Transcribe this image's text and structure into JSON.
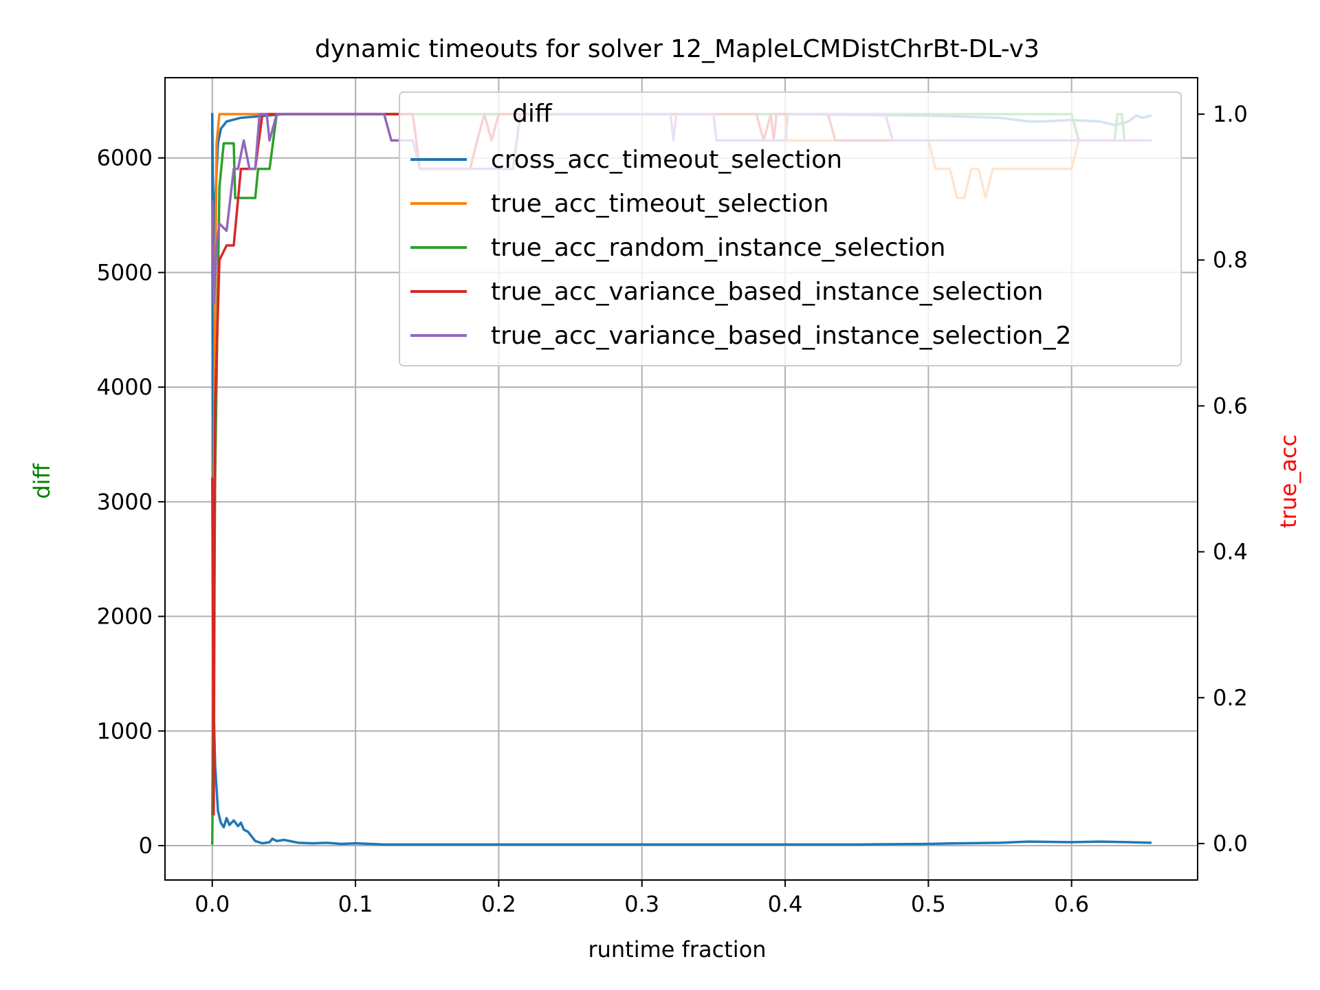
{
  "chart_data": {
    "type": "line",
    "title": "dynamic timeouts for solver 12_MapleLCMDistChrBt-DL-v3",
    "xlabel": "runtime fraction",
    "ylabel_left": "diff",
    "ylabel_right": "true_acc",
    "ylabel_left_color": "#008000",
    "ylabel_right_color": "#ff0000",
    "xlim": [
      -0.033,
      0.688
    ],
    "ylim_left": [
      -300,
      6700
    ],
    "ylim_right": [
      -0.05,
      1.05
    ],
    "grid": true,
    "legend_position": "top-right",
    "x_ticks": [
      {
        "v": 0.0,
        "label": "0.0"
      },
      {
        "v": 0.1,
        "label": "0.1"
      },
      {
        "v": 0.2,
        "label": "0.2"
      },
      {
        "v": 0.3,
        "label": "0.3"
      },
      {
        "v": 0.4,
        "label": "0.4"
      },
      {
        "v": 0.5,
        "label": "0.5"
      },
      {
        "v": 0.6,
        "label": "0.6"
      }
    ],
    "y_ticks_left": [
      {
        "v": 0,
        "label": "0"
      },
      {
        "v": 1000,
        "label": "1000"
      },
      {
        "v": 2000,
        "label": "2000"
      },
      {
        "v": 3000,
        "label": "3000"
      },
      {
        "v": 4000,
        "label": "4000"
      },
      {
        "v": 5000,
        "label": "5000"
      },
      {
        "v": 6000,
        "label": "6000"
      }
    ],
    "y_ticks_right": [
      {
        "v": 0.0,
        "label": "0.0"
      },
      {
        "v": 0.2,
        "label": "0.2"
      },
      {
        "v": 0.4,
        "label": "0.4"
      },
      {
        "v": 0.6,
        "label": "0.6"
      },
      {
        "v": 0.8,
        "label": "0.8"
      },
      {
        "v": 1.0,
        "label": "1.0"
      }
    ],
    "legend_title": "diff",
    "series": [
      {
        "name": "cross_acc_timeout_selection",
        "color": "#1f77b4",
        "axis": "left",
        "points": [
          [
            0,
            6380
          ],
          [
            0.0005,
            2000
          ],
          [
            0.001,
            1200
          ],
          [
            0.002,
            700
          ],
          [
            0.004,
            300
          ],
          [
            0.006,
            200
          ],
          [
            0.008,
            160
          ],
          [
            0.01,
            240
          ],
          [
            0.012,
            180
          ],
          [
            0.015,
            220
          ],
          [
            0.018,
            170
          ],
          [
            0.02,
            200
          ],
          [
            0.022,
            140
          ],
          [
            0.025,
            120
          ],
          [
            0.03,
            40
          ],
          [
            0.035,
            20
          ],
          [
            0.04,
            30
          ],
          [
            0.042,
            60
          ],
          [
            0.045,
            40
          ],
          [
            0.05,
            50
          ],
          [
            0.06,
            25
          ],
          [
            0.07,
            20
          ],
          [
            0.08,
            25
          ],
          [
            0.09,
            15
          ],
          [
            0.1,
            20
          ],
          [
            0.12,
            10
          ],
          [
            0.15,
            10
          ],
          [
            0.2,
            10
          ],
          [
            0.25,
            10
          ],
          [
            0.3,
            10
          ],
          [
            0.35,
            10
          ],
          [
            0.4,
            10
          ],
          [
            0.45,
            10
          ],
          [
            0.5,
            15
          ],
          [
            0.52,
            20
          ],
          [
            0.55,
            25
          ],
          [
            0.57,
            35
          ],
          [
            0.6,
            30
          ],
          [
            0.62,
            35
          ],
          [
            0.64,
            30
          ],
          [
            0.655,
            25
          ]
        ]
      },
      {
        "name": "cross_acc_timeout_selection",
        "color": "#1f77b4",
        "axis": "right",
        "points": [
          [
            0,
            1.0
          ],
          [
            0.0005,
            0.9
          ],
          [
            0.001,
            0.78
          ],
          [
            0.002,
            0.88
          ],
          [
            0.004,
            0.96
          ],
          [
            0.006,
            0.98
          ],
          [
            0.01,
            0.99
          ],
          [
            0.02,
            0.995
          ],
          [
            0.05,
            1.0
          ],
          [
            0.1,
            1.0
          ],
          [
            0.2,
            1.0
          ],
          [
            0.3,
            1.0
          ],
          [
            0.4,
            1.0
          ],
          [
            0.5,
            0.998
          ],
          [
            0.55,
            0.995
          ],
          [
            0.57,
            0.99
          ],
          [
            0.58,
            0.99
          ],
          [
            0.6,
            0.992
          ],
          [
            0.62,
            0.99
          ],
          [
            0.63,
            0.985
          ],
          [
            0.64,
            0.99
          ],
          [
            0.645,
            0.998
          ],
          [
            0.65,
            0.995
          ],
          [
            0.655,
            0.998
          ]
        ]
      },
      {
        "name": "true_acc_timeout_selection",
        "color": "#ff7f0e",
        "axis": "right",
        "points": [
          [
            0,
            0.04
          ],
          [
            0.001,
            0.5
          ],
          [
            0.003,
            0.96
          ],
          [
            0.005,
            1.0
          ],
          [
            0.4,
            1.0
          ],
          [
            0.401,
            0.964
          ],
          [
            0.5,
            0.964
          ],
          [
            0.5,
            0.964
          ],
          [
            0.505,
            0.925
          ],
          [
            0.515,
            0.925
          ],
          [
            0.52,
            0.885
          ],
          [
            0.525,
            0.885
          ],
          [
            0.53,
            0.925
          ],
          [
            0.535,
            0.925
          ],
          [
            0.54,
            0.885
          ],
          [
            0.545,
            0.925
          ],
          [
            0.6,
            0.925
          ],
          [
            0.605,
            0.964
          ],
          [
            0.655,
            0.964
          ]
        ]
      },
      {
        "name": "true_acc_random_instance_selection",
        "color": "#2ca02c",
        "axis": "right",
        "points": [
          [
            0,
            0.0
          ],
          [
            0.002,
            0.5
          ],
          [
            0.005,
            0.9
          ],
          [
            0.008,
            0.96
          ],
          [
            0.015,
            0.96
          ],
          [
            0.016,
            0.885
          ],
          [
            0.03,
            0.885
          ],
          [
            0.032,
            0.925
          ],
          [
            0.04,
            0.925
          ],
          [
            0.045,
            1.0
          ],
          [
            0.6,
            1.0
          ],
          [
            0.605,
            0.964
          ],
          [
            0.63,
            0.964
          ],
          [
            0.632,
            1.0
          ],
          [
            0.635,
            1.0
          ],
          [
            0.637,
            0.964
          ],
          [
            0.655,
            0.964
          ]
        ]
      },
      {
        "name": "true_acc_variance_based_instance_selection",
        "color": "#d62728",
        "axis": "right",
        "points": [
          [
            0,
            0.5
          ],
          [
            0.001,
            0.04
          ],
          [
            0.002,
            0.6
          ],
          [
            0.005,
            0.8
          ],
          [
            0.01,
            0.82
          ],
          [
            0.015,
            0.82
          ],
          [
            0.02,
            0.925
          ],
          [
            0.025,
            0.925
          ],
          [
            0.03,
            0.925
          ],
          [
            0.035,
            1.0
          ],
          [
            0.14,
            1.0
          ],
          [
            0.145,
            0.925
          ],
          [
            0.18,
            0.925
          ],
          [
            0.185,
            0.964
          ],
          [
            0.19,
            1.0
          ],
          [
            0.195,
            0.964
          ],
          [
            0.2,
            1.0
          ],
          [
            0.38,
            1.0
          ],
          [
            0.385,
            0.964
          ],
          [
            0.39,
            1.0
          ],
          [
            0.392,
            0.964
          ],
          [
            0.394,
            1.0
          ],
          [
            0.43,
            1.0
          ],
          [
            0.435,
            0.964
          ],
          [
            0.655,
            0.964
          ]
        ]
      },
      {
        "name": "true_acc_variance_based_instance_selection_2",
        "color": "#9467bd",
        "axis": "right",
        "points": [
          [
            0,
            0.88
          ],
          [
            0.001,
            0.74
          ],
          [
            0.003,
            0.82
          ],
          [
            0.005,
            0.85
          ],
          [
            0.01,
            0.84
          ],
          [
            0.015,
            0.925
          ],
          [
            0.018,
            0.925
          ],
          [
            0.022,
            0.964
          ],
          [
            0.026,
            0.925
          ],
          [
            0.03,
            0.925
          ],
          [
            0.033,
            1.0
          ],
          [
            0.038,
            1.0
          ],
          [
            0.04,
            0.964
          ],
          [
            0.045,
            1.0
          ],
          [
            0.12,
            1.0
          ],
          [
            0.125,
            0.964
          ],
          [
            0.14,
            0.964
          ],
          [
            0.145,
            0.925
          ],
          [
            0.21,
            0.925
          ],
          [
            0.215,
            1.0
          ],
          [
            0.32,
            1.0
          ],
          [
            0.322,
            0.964
          ],
          [
            0.324,
            1.0
          ],
          [
            0.35,
            1.0
          ],
          [
            0.352,
            0.964
          ],
          [
            0.4,
            0.964
          ],
          [
            0.402,
            1.0
          ],
          [
            0.47,
            1.0
          ],
          [
            0.475,
            0.964
          ],
          [
            0.655,
            0.964
          ]
        ]
      }
    ]
  }
}
